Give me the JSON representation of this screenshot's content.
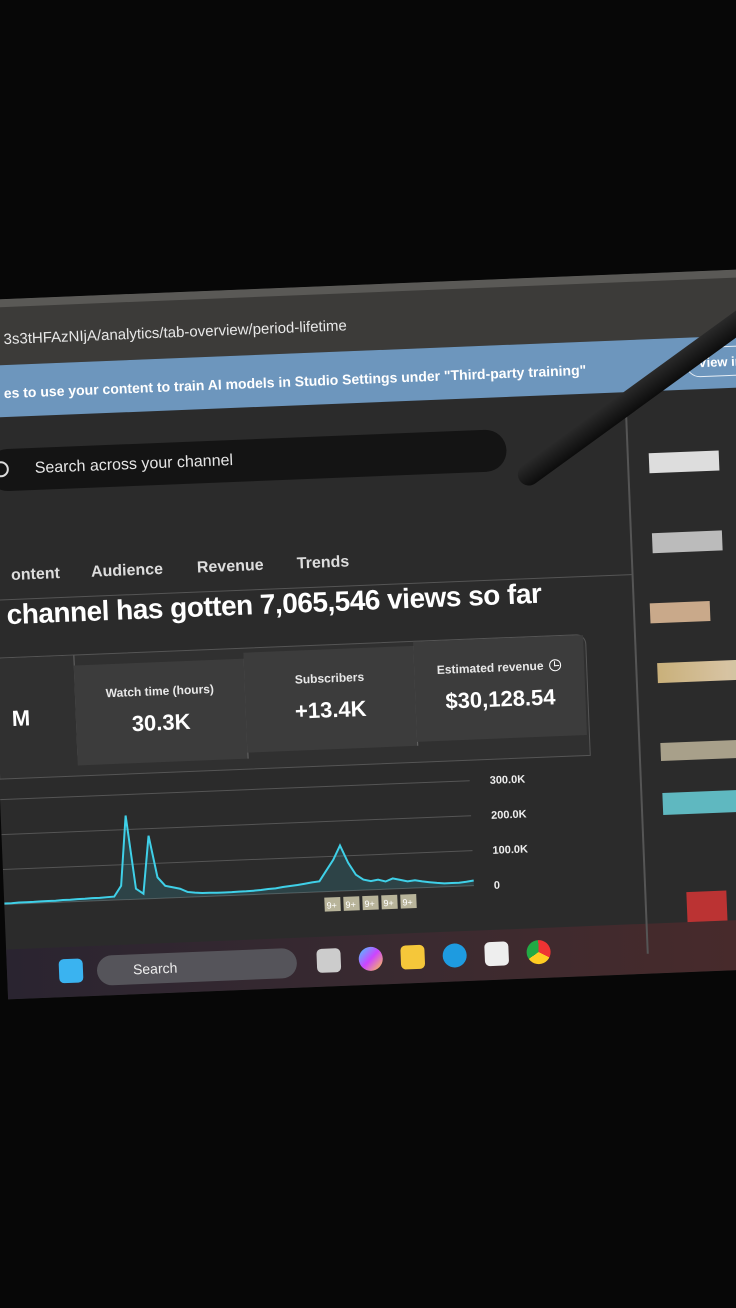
{
  "browser": {
    "url": "3s3tHFAzNIjA/analytics/tab-overview/period-lifetime"
  },
  "banner": {
    "text": "es to use your content to train AI models in Studio Settings under \"Third-party training\"",
    "button": "View in"
  },
  "search": {
    "placeholder": "Search across your channel",
    "icon": "search-icon"
  },
  "tabs": [
    {
      "label": "ontent"
    },
    {
      "label": "Audience"
    },
    {
      "label": "Revenue"
    },
    {
      "label": "Trends"
    }
  ],
  "headline": "channel has gotten 7,065,546 views so far",
  "metrics": [
    {
      "label": "",
      "value": "M"
    },
    {
      "label": "Watch time (hours)",
      "value": "30.3K"
    },
    {
      "label": "Subscribers",
      "value": "+13.4K"
    },
    {
      "label": "Estimated revenue",
      "value": "$30,128.54",
      "icon": "clock-icon"
    }
  ],
  "chart_data": {
    "type": "line",
    "ylim": [
      0,
      300000
    ],
    "y_ticks": [
      "300.0K",
      "200.0K",
      "100.0K",
      "0"
    ],
    "grid": true,
    "color": "#3fd0e8",
    "values": [
      3000,
      3000,
      4000,
      4000,
      4000,
      5000,
      5000,
      5000,
      6000,
      6000,
      7000,
      7000,
      8000,
      8000,
      9000,
      10000,
      40000,
      240000,
      30000,
      15000,
      180000,
      60000,
      35000,
      30000,
      25000,
      15000,
      12000,
      10000,
      10000,
      9000,
      9000,
      9000,
      10000,
      10000,
      11000,
      12000,
      14000,
      15000,
      18000,
      20000,
      22000,
      25000,
      28000,
      30000,
      60000,
      90000,
      130000,
      80000,
      45000,
      30000,
      25000,
      28000,
      22000,
      30000,
      25000,
      20000,
      22000,
      18000,
      15000,
      12000,
      10000,
      10000,
      10000,
      12000,
      15000
    ],
    "markers": [
      "9+",
      "9+",
      "9+",
      "9+",
      "9+"
    ]
  },
  "taskbar": {
    "search": "Search",
    "icons": [
      "windows-start-icon",
      "task-view-icon",
      "copilot-icon",
      "file-explorer-icon",
      "edge-icon",
      "store-icon",
      "chrome-icon"
    ]
  }
}
